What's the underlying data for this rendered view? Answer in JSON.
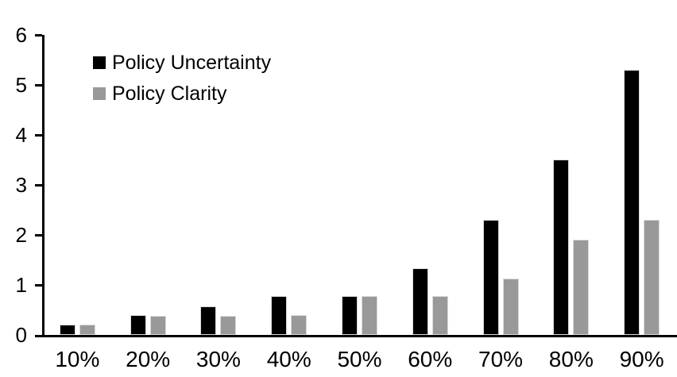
{
  "chart_data": {
    "type": "bar",
    "title": "",
    "xlabel": "",
    "ylabel": "",
    "categories": [
      "10%",
      "20%",
      "30%",
      "40%",
      "50%",
      "60%",
      "70%",
      "80%",
      "90%"
    ],
    "series": [
      {
        "name": "Policy Uncertainty",
        "color": "#000000",
        "values": [
          0.2,
          0.4,
          0.57,
          0.77,
          0.77,
          1.33,
          2.3,
          3.5,
          5.3
        ]
      },
      {
        "name": "Policy Clarity",
        "color": "#999999",
        "values": [
          0.2,
          0.38,
          0.38,
          0.4,
          0.77,
          0.77,
          1.13,
          1.9,
          2.3
        ]
      }
    ],
    "ylim": [
      0,
      6
    ],
    "yticks": [
      0,
      1,
      2,
      3,
      4,
      5,
      6
    ],
    "grid": false,
    "legend_position": "top-left-inside",
    "background_color": "#ffffff",
    "axis_color": "#000000",
    "bar_border_color": "#d9d9d9"
  }
}
